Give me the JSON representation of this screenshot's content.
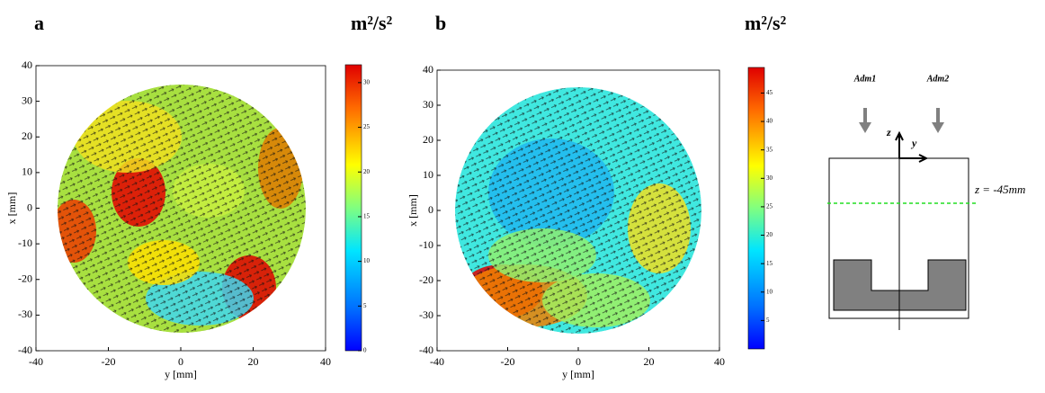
{
  "chart_data": [
    {
      "type": "vector-field",
      "panel_label": "a",
      "colorbar_label": "m²/s²",
      "x_label": "y [mm]",
      "y_label": "x [mm]",
      "xlim": [
        -40,
        40
      ],
      "ylim": [
        -40,
        40
      ],
      "xticks": [
        -40,
        -20,
        0,
        20,
        40
      ],
      "yticks": [
        -40,
        -30,
        -20,
        -10,
        0,
        10,
        20,
        30,
        40
      ],
      "clim": [
        0,
        32
      ],
      "cticks": [
        0,
        5,
        10,
        15,
        20,
        25,
        30
      ]
    },
    {
      "type": "vector-field",
      "panel_label": "b",
      "colorbar_label": "m²/s²",
      "x_label": "y [mm]",
      "y_label": "x [mm]",
      "xlim": [
        -40,
        40
      ],
      "ylim": [
        -40,
        40
      ],
      "xticks": [
        -40,
        -20,
        0,
        20,
        40
      ],
      "yticks": [
        -40,
        -30,
        -20,
        -10,
        0,
        10,
        20,
        30,
        40
      ],
      "clim": [
        0,
        49.5
      ],
      "cticks": [
        5,
        10,
        15,
        20,
        25,
        30,
        35,
        40,
        45
      ]
    }
  ],
  "diagram": {
    "inlet_1": "Adm1",
    "inlet_2": "Adm2",
    "axis_z": "z",
    "axis_y": "y",
    "plane": "z = -45mm"
  }
}
